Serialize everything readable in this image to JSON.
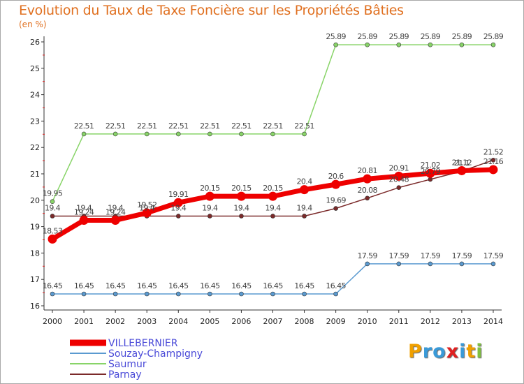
{
  "chart_data": {
    "type": "line",
    "title": "Evolution du Taux de Taxe Foncière sur les Propriétés Bâties",
    "unit": "(en %)",
    "xlabel": "",
    "ylabel": "",
    "x": [
      "2000",
      "2001",
      "2002",
      "2003",
      "2004",
      "2005",
      "2006",
      "2007",
      "2008",
      "2009",
      "2010",
      "2011",
      "2012",
      "2013",
      "2014"
    ],
    "ylim": [
      16,
      26
    ],
    "yticks": [
      16,
      17,
      18,
      19,
      20,
      21,
      22,
      23,
      24,
      25,
      26
    ],
    "grid": false,
    "legend_position": "bottom-left",
    "series": [
      {
        "name": "Parnay",
        "color": "#7b2a2a",
        "values": [
          19.4,
          19.4,
          19.4,
          19.4,
          19.4,
          19.4,
          19.4,
          19.4,
          19.4,
          19.69,
          20.08,
          20.48,
          20.79,
          21.1,
          21.52
        ],
        "labels": [
          "19.4",
          "19.4",
          "19.4",
          "19.4",
          "19.4",
          "19.4",
          "19.4",
          "19.4",
          "19.4",
          "19.69",
          "20.08",
          "20.48",
          "20.79",
          "21.1",
          "21.52"
        ]
      },
      {
        "name": "Saumur",
        "color": "#88d468",
        "values": [
          19.95,
          22.51,
          22.51,
          22.51,
          22.51,
          22.51,
          22.51,
          22.51,
          22.51,
          25.89,
          25.89,
          25.89,
          25.89,
          25.89,
          25.89
        ],
        "labels": [
          "19.95",
          "22.51",
          "22.51",
          "22.51",
          "22.51",
          "22.51",
          "22.51",
          "22.51",
          "22.51",
          "25.89",
          "25.89",
          "25.89",
          "25.89",
          "25.89",
          "25.89"
        ]
      },
      {
        "name": "Souzay-Champigny",
        "color": "#5a9ad0",
        "values": [
          16.45,
          16.45,
          16.45,
          16.45,
          16.45,
          16.45,
          16.45,
          16.45,
          16.45,
          16.45,
          17.59,
          17.59,
          17.59,
          17.59,
          17.59
        ],
        "labels": [
          "16.45",
          "16.45",
          "16.45",
          "16.45",
          "16.45",
          "16.45",
          "16.45",
          "16.45",
          "16.45",
          "16.45",
          "17.59",
          "17.59",
          "17.59",
          "17.59",
          "17.59"
        ]
      },
      {
        "name": "VILLEBERNIER",
        "color": "#ee0000",
        "values": [
          18.53,
          19.24,
          19.24,
          19.52,
          19.91,
          20.15,
          20.15,
          20.15,
          20.4,
          20.6,
          20.81,
          20.91,
          21.02,
          21.12,
          21.16
        ],
        "labels": [
          "18.53",
          "19.24",
          "19.24",
          "19.52",
          "19.91",
          "20.15",
          "20.15",
          "20.15",
          "20.4",
          "20.6",
          "20.81",
          "20.91",
          "21.02",
          "21.12",
          "21.16"
        ]
      }
    ]
  },
  "logo": {
    "letters": [
      "P",
      "r",
      "o",
      "x",
      "i",
      "t",
      "i"
    ],
    "colors": [
      "#f0a000",
      "#3a9ad8",
      "#3a9ad8",
      "#e02020",
      "#3a9ad8",
      "#f0a000",
      "#80c040"
    ]
  }
}
